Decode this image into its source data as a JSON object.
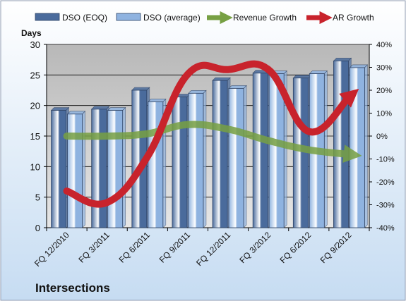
{
  "chart_data": {
    "type": "bar",
    "title": "Intersections",
    "ylabel": "Days",
    "ylim": [
      0,
      30
    ],
    "y2lim": [
      -0.4,
      0.4
    ],
    "yticks": [
      "0",
      "5",
      "10",
      "15",
      "20",
      "25",
      "30"
    ],
    "y2ticks": [
      "-40%",
      "-30%",
      "-20%",
      "-10%",
      "0%",
      "10%",
      "20%",
      "30%",
      "40%"
    ],
    "categories": [
      "FQ 12/2010",
      "FQ 3/2011",
      "FQ 6/2011",
      "FQ 9/2011",
      "FQ 12/2011",
      "FQ 3/2012",
      "FQ 6/2012",
      "FQ 9/2012"
    ],
    "legend_position": "top",
    "grid": true,
    "series": [
      {
        "name": "DSO (EOQ)",
        "type": "bar",
        "axis": "left",
        "color": "#4a6b9c",
        "values": [
          19.2,
          19.4,
          22.5,
          21.4,
          24.1,
          25.3,
          24.5,
          27.3
        ]
      },
      {
        "name": "DSO (average)",
        "type": "bar",
        "axis": "left",
        "color": "#8fb3e0",
        "values": [
          18.6,
          19.2,
          20.6,
          22.0,
          22.8,
          25.2,
          25.2,
          26.2
        ]
      },
      {
        "name": "Revenue Growth",
        "type": "line",
        "axis": "right",
        "color": "#77a043",
        "values": [
          0.0,
          0.0,
          0.01,
          0.05,
          0.03,
          -0.02,
          -0.06,
          -0.08
        ]
      },
      {
        "name": "AR Growth",
        "type": "line",
        "axis": "right",
        "color": "#c8232c",
        "values": [
          -0.24,
          -0.29,
          -0.09,
          0.27,
          0.29,
          0.29,
          0.02,
          0.17
        ]
      }
    ]
  }
}
